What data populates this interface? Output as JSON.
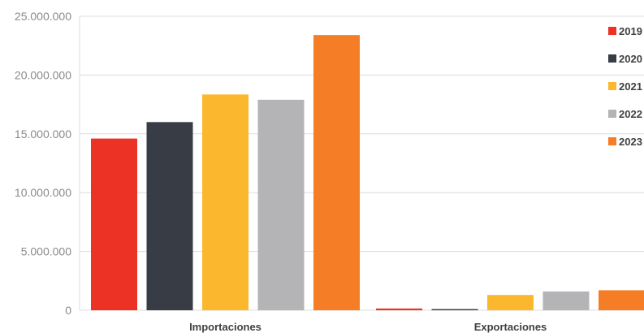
{
  "chart_data": {
    "type": "bar",
    "categories": [
      "Importaciones",
      "Exportaciones"
    ],
    "series": [
      {
        "name": "2019",
        "color": "#ec3125",
        "values": [
          14600000,
          150000
        ]
      },
      {
        "name": "2020",
        "color": "#383c44",
        "values": [
          16000000,
          100000
        ]
      },
      {
        "name": "2021",
        "color": "#fbb82f",
        "values": [
          18350000,
          1300000
        ]
      },
      {
        "name": "2022",
        "color": "#b4b3b6",
        "values": [
          17900000,
          1600000
        ]
      },
      {
        "name": "2023",
        "color": "#f57d26",
        "values": [
          23400000,
          1700000
        ]
      }
    ],
    "y_ticks": [
      "25.000.000",
      "20.000.000",
      "15.000.000",
      "10.000.000",
      "5.000.000",
      "0"
    ],
    "ylim": [
      0,
      25000000
    ],
    "grid": true,
    "legend_position": "right"
  }
}
